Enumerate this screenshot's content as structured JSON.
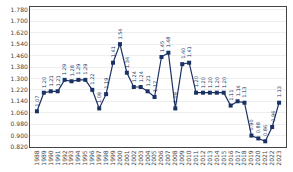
{
  "chart_data": {
    "type": "line",
    "x": [
      1988,
      1989,
      1990,
      1991,
      1992,
      1993,
      1994,
      1995,
      1996,
      1997,
      1998,
      1999,
      2000,
      2001,
      2002,
      2003,
      2004,
      2005,
      2006,
      2007,
      2008,
      2009,
      2010,
      2011,
      2012,
      2013,
      2014,
      2015,
      2016,
      2017,
      2018,
      2019,
      2020,
      2021,
      2022,
      2023
    ],
    "values": [
      1.07,
      1.2,
      1.21,
      1.21,
      1.29,
      1.28,
      1.29,
      1.29,
      1.22,
      1.09,
      1.19,
      1.41,
      1.54,
      1.34,
      1.24,
      1.24,
      1.21,
      1.17,
      1.45,
      1.48,
      1.09,
      1.4,
      1.41,
      1.2,
      1.2,
      1.2,
      1.2,
      1.2,
      1.11,
      1.14,
      1.13,
      0.9,
      0.88,
      0.86,
      0.96,
      1.13
    ],
    "value_labels": [
      "1.07",
      "1.20",
      "1.21",
      "1.21",
      "1.29",
      "1.28",
      "1.29",
      "1.29",
      "1.22",
      "1.09",
      "1.19",
      "1.41",
      "1.54",
      "1.34",
      "1.24",
      "1.24",
      "1.21",
      "1.17",
      "1.45",
      "1.48",
      "1.09",
      "1.40",
      "1.41",
      "1.20",
      "1.20",
      "1.20",
      "1.20",
      "1.20",
      "1.11",
      "1.14",
      "1.13",
      "0.90",
      "0.88",
      "0.86",
      "0.96",
      "1.13"
    ],
    "data_labels": true,
    "color": "#1a3263",
    "marker": "square",
    "grid": "y",
    "xlim": [
      1987,
      2024
    ],
    "xticks": [
      1988,
      1989,
      1990,
      1991,
      1992,
      1993,
      1994,
      1995,
      1996,
      1997,
      1998,
      1999,
      2000,
      2001,
      2002,
      2003,
      2004,
      2005,
      2006,
      2007,
      2008,
      2009,
      2010,
      2011,
      2012,
      2013,
      2014,
      2015,
      2016,
      2017,
      2018,
      2019,
      2020,
      2021,
      2022,
      2023
    ],
    "ylim": [
      0.82,
      1.8
    ],
    "yticks": [
      {
        "value": 0.82,
        "label": "0.820"
      },
      {
        "value": 0.9,
        "label": "0.900"
      },
      {
        "value": 0.98,
        "label": "0.980"
      },
      {
        "value": 1.06,
        "label": "1.060"
      },
      {
        "value": 1.14,
        "label": "1.140"
      },
      {
        "value": 1.22,
        "label": "1.220"
      },
      {
        "value": 1.3,
        "label": "1.300"
      },
      {
        "value": 1.38,
        "label": "1.380"
      },
      {
        "value": 1.46,
        "label": "1.460"
      },
      {
        "value": 1.54,
        "label": "1.540"
      },
      {
        "value": 1.62,
        "label": "1.620"
      },
      {
        "value": 1.7,
        "label": "1.700"
      },
      {
        "value": 1.78,
        "label": "1.780"
      }
    ]
  }
}
